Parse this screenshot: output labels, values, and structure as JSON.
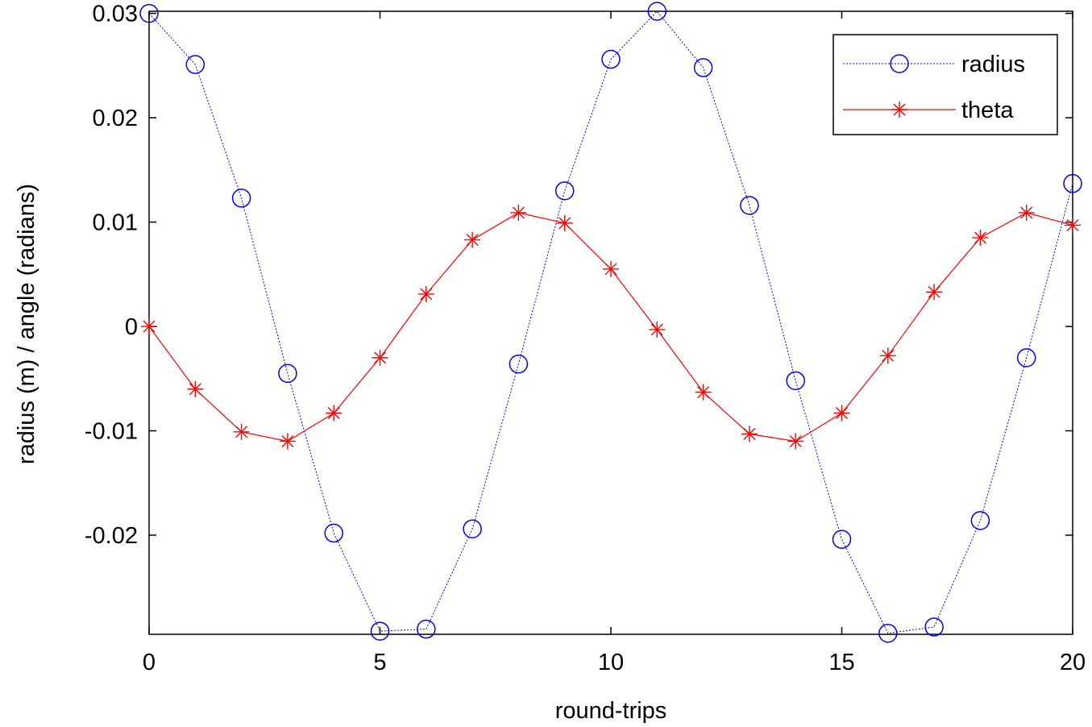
{
  "chart_data": {
    "type": "line",
    "xlabel": "round-trips",
    "ylabel": "radius (m) / angle (radians)",
    "xlim": [
      0,
      20
    ],
    "ylim": [
      -0.0295,
      0.0302
    ],
    "x_ticks": [
      "0",
      "5",
      "10",
      "15",
      "20"
    ],
    "y_ticks": [
      "0.03",
      "0.02",
      "0.01",
      "0",
      "-0.01",
      "-0.02"
    ],
    "grid": false,
    "legend_position": "top-right",
    "x": [
      0,
      1,
      2,
      3,
      4,
      5,
      6,
      7,
      8,
      9,
      10,
      11,
      12,
      13,
      14,
      15,
      16,
      17,
      18,
      19,
      20
    ],
    "series": [
      {
        "name": "radius",
        "color": "#0000ff",
        "line_style": "dotted",
        "marker": "circle",
        "values": [
          0.03,
          0.0251,
          0.0123,
          -0.0045,
          -0.0198,
          -0.0292,
          -0.029,
          -0.0194,
          -0.0036,
          0.013,
          0.0256,
          0.0302,
          0.0248,
          0.0116,
          -0.0052,
          -0.0204,
          -0.0294,
          -0.0288,
          -0.0186,
          -0.003,
          0.0137
        ]
      },
      {
        "name": "theta",
        "color": "#ff0000",
        "line_style": "solid",
        "marker": "asterisk",
        "values": [
          0.0,
          -0.006,
          -0.0101,
          -0.011,
          -0.0083,
          -0.003,
          0.0031,
          0.0083,
          0.0109,
          0.0099,
          0.0055,
          -0.0003,
          -0.0063,
          -0.0103,
          -0.011,
          -0.0083,
          -0.0028,
          0.0033,
          0.0085,
          0.0109,
          0.0097
        ]
      }
    ]
  }
}
